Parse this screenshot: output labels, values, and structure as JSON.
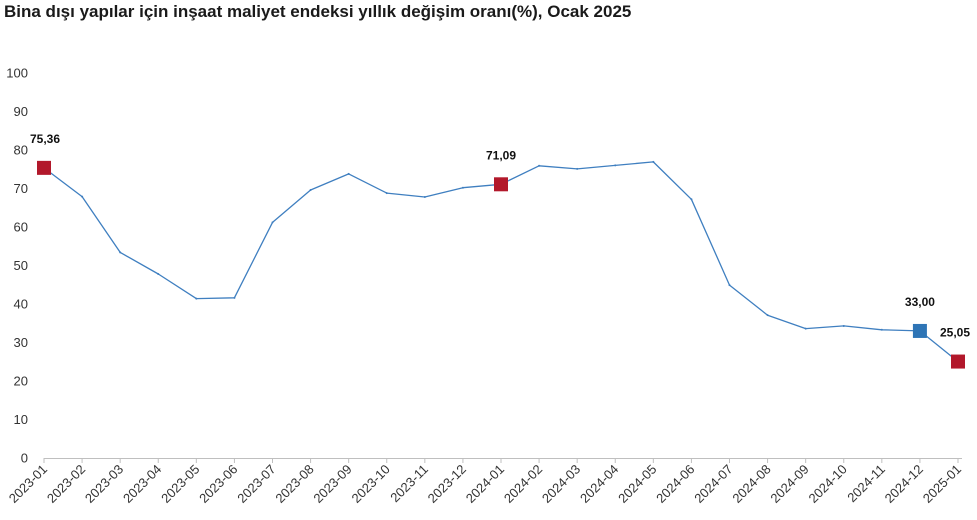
{
  "chart_data": {
    "type": "line",
    "title": "Bina dışı yapılar için inşaat maliyet endeksi yıllık değişim oranı(%), Ocak 2025",
    "xlabel": "",
    "ylabel": "",
    "ylim": [
      0,
      100
    ],
    "yticks": [
      0,
      10,
      20,
      30,
      40,
      50,
      60,
      70,
      80,
      90,
      100
    ],
    "grid": false,
    "categories": [
      "2023-01",
      "2023-02",
      "2023-03",
      "2023-04",
      "2023-05",
      "2023-06",
      "2023-07",
      "2023-08",
      "2023-09",
      "2023-10",
      "2023-11",
      "2023-12",
      "2024-01",
      "2024-02",
      "2024-03",
      "2024-04",
      "2024-05",
      "2024-06",
      "2024-07",
      "2024-08",
      "2024-09",
      "2024-10",
      "2024-11",
      "2024-12",
      "2025-01"
    ],
    "series": [
      {
        "values": [
          75.36,
          67.9,
          53.4,
          47.8,
          41.4,
          41.6,
          61.2,
          69.6,
          73.8,
          68.8,
          67.8,
          70.2,
          71.09,
          75.9,
          75.1,
          76.0,
          76.9,
          67.2,
          44.9,
          37.1,
          33.6,
          34.3,
          33.3,
          33.0,
          25.05
        ],
        "color": "#3f7fc0"
      }
    ],
    "highlights": [
      {
        "index": 0,
        "label": "75,36",
        "color": "#b2182b"
      },
      {
        "index": 12,
        "label": "71,09",
        "color": "#b2182b"
      },
      {
        "index": 23,
        "label": "33,00",
        "color": "#2e75b6"
      },
      {
        "index": 24,
        "label": "25,05",
        "color": "#b2182b"
      }
    ]
  }
}
